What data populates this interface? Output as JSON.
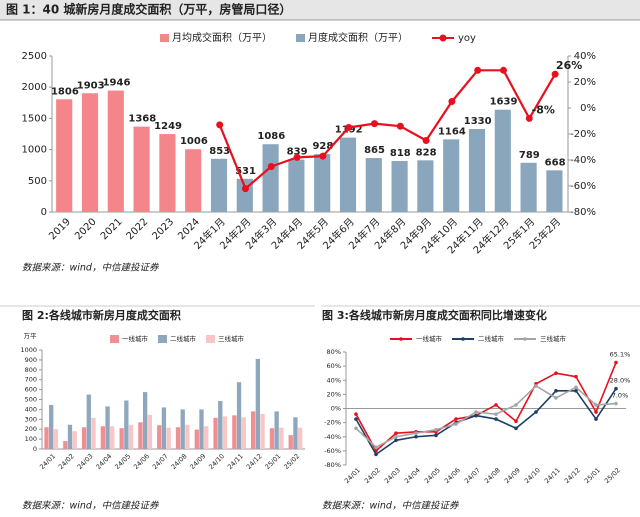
{
  "chart_data": [
    {
      "type": "bar",
      "title": "图 1：40 城新房月度成交面积（万平，房管局口径）",
      "source": "数据来源：wind，中信建投证券",
      "categories": [
        "2019",
        "2020",
        "2021",
        "2022",
        "2023",
        "2024",
        "24年1月",
        "24年2月",
        "24年3月",
        "24年4月",
        "24年5月",
        "24年6月",
        "24年7月",
        "24年8月",
        "24年9月",
        "24年10月",
        "24年11月",
        "24年12月",
        "25年1月",
        "25年2月"
      ],
      "series": [
        {
          "name": "月均成交面积（万平）",
          "color": "#f4858a",
          "label_color": "#e8262e",
          "values": [
            1806,
            1903,
            1946,
            1368,
            1249,
            1006,
            null,
            null,
            null,
            null,
            null,
            null,
            null,
            null,
            null,
            null,
            null,
            null,
            null,
            null
          ]
        },
        {
          "name": "月度成交面积（万平）",
          "color": "#8aa6bc",
          "label_color": "#1f3f66",
          "values": [
            null,
            null,
            null,
            null,
            null,
            null,
            853,
            531,
            1086,
            839,
            928,
            1192,
            865,
            818,
            828,
            1164,
            1330,
            1639,
            789,
            668
          ]
        },
        {
          "name": "yoy",
          "color": "#e8101e",
          "axis": "y2",
          "label_color": "#e8101e",
          "values": [
            null,
            null,
            null,
            null,
            null,
            null,
            -13,
            -62,
            -45,
            -38,
            -37,
            -15,
            -12,
            -14,
            -25,
            5,
            29,
            29,
            -8,
            26
          ],
          "value_labels": [
            null,
            null,
            null,
            null,
            null,
            null,
            null,
            null,
            null,
            null,
            null,
            null,
            null,
            null,
            null,
            null,
            null,
            null,
            "-8%",
            "26%"
          ]
        }
      ],
      "data_labels": true,
      "ylim": [
        0,
        2500
      ],
      "yticks": [
        0,
        500,
        1000,
        1500,
        2000,
        2500
      ],
      "y2lim": [
        -80,
        40
      ],
      "y2ticks": [
        {
          "value": -80,
          "label": "-80%"
        },
        {
          "value": -60,
          "label": "-60%"
        },
        {
          "value": -40,
          "label": "-40%"
        },
        {
          "value": -20,
          "label": "-20%"
        },
        {
          "value": 0,
          "label": "0%"
        },
        {
          "value": 20,
          "label": "20%"
        },
        {
          "value": 40,
          "label": "40%"
        }
      ],
      "grid": false
    },
    {
      "type": "bar",
      "title": "图 2:各线城市新房月度成交面积",
      "source": "数据来源：wind，中信建投证券",
      "ylabel": "万平",
      "categories": [
        "24/01",
        "24/02",
        "24/03",
        "24/04",
        "24/05",
        "24/06",
        "24/07",
        "24/08",
        "24/09",
        "24/10",
        "24/11",
        "24/12",
        "25/01",
        "25/02"
      ],
      "series": [
        {
          "name": "一线城市",
          "color": "#ef8f93",
          "values": [
            220,
            80,
            220,
            230,
            210,
            270,
            240,
            220,
            195,
            315,
            340,
            380,
            210,
            140
          ]
        },
        {
          "name": "二线城市",
          "color": "#8ea7bd",
          "values": [
            445,
            245,
            550,
            430,
            490,
            575,
            420,
            400,
            400,
            485,
            675,
            910,
            380,
            320
          ]
        },
        {
          "name": "三线城市",
          "color": "#f7c6c6",
          "values": [
            200,
            180,
            315,
            230,
            245,
            345,
            215,
            245,
            230,
            330,
            320,
            355,
            215,
            215
          ]
        }
      ],
      "ylim": [
        0,
        1000
      ],
      "yticks": [
        0,
        100,
        200,
        300,
        400,
        500,
        600,
        700,
        800,
        900,
        1000
      ],
      "grid": false
    },
    {
      "type": "line",
      "title": "图 3:各线城市新房月度成交面积同比增速变化",
      "source": "数据来源：wind，中信建投证券",
      "categories": [
        "24/01",
        "24/02",
        "24/03",
        "24/04",
        "24/05",
        "24/06",
        "24/07",
        "24/08",
        "24/09",
        "24/10",
        "24/11",
        "24/12",
        "25/01",
        "25/02"
      ],
      "series": [
        {
          "name": "一线城市",
          "color": "#e8101e",
          "label_color": "#e8101e",
          "values": [
            -8,
            -60,
            -35,
            -33,
            -33,
            -15,
            -10,
            5,
            -18,
            35,
            50,
            45,
            -5,
            65.1
          ],
          "value_labels": [
            null,
            null,
            null,
            null,
            null,
            null,
            null,
            null,
            null,
            null,
            null,
            null,
            null,
            "65.1%"
          ]
        },
        {
          "name": "二线城市",
          "color": "#1f3f66",
          "label_color": "#1f3f66",
          "values": [
            -15,
            -65,
            -45,
            -40,
            -38,
            -20,
            -10,
            -15,
            -28,
            -5,
            25,
            25,
            -15,
            28.0
          ],
          "value_labels": [
            null,
            null,
            null,
            null,
            null,
            null,
            null,
            null,
            null,
            null,
            null,
            null,
            null,
            "28.0%"
          ]
        },
        {
          "name": "三线城市",
          "color": "#a5a5a5",
          "label_color": "#7f7f7f",
          "values": [
            -28,
            -55,
            -40,
            -35,
            -30,
            -22,
            -5,
            -8,
            5,
            32,
            15,
            30,
            5,
            7.0
          ],
          "value_labels": [
            null,
            null,
            null,
            null,
            null,
            null,
            null,
            null,
            null,
            null,
            null,
            null,
            null,
            "7.0%"
          ]
        }
      ],
      "ylim": [
        -80,
        80
      ],
      "yticks": [
        {
          "value": -80,
          "label": "-80%"
        },
        {
          "value": -60,
          "label": "-60%"
        },
        {
          "value": -40,
          "label": "-40%"
        },
        {
          "value": -20,
          "label": "-20%"
        },
        {
          "value": 0,
          "label": "0%"
        },
        {
          "value": 20,
          "label": "20%"
        },
        {
          "value": 40,
          "label": "40%"
        },
        {
          "value": 60,
          "label": "60%"
        },
        {
          "value": 80,
          "label": "80%"
        }
      ],
      "grid": false
    }
  ]
}
